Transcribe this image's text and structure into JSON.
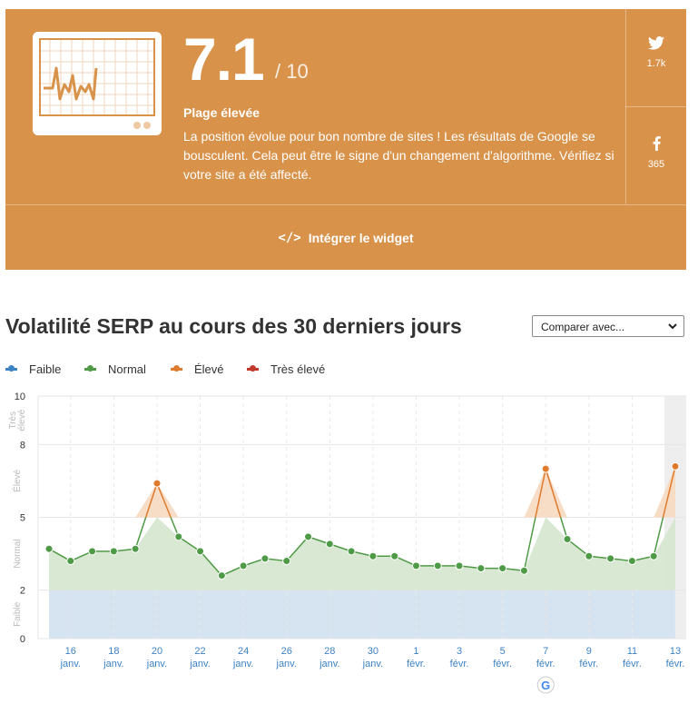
{
  "card": {
    "score": "7.1",
    "score_max": "/ 10",
    "range_label": "Plage élevée",
    "description": "La position évolue pour bon nombre de sites ! Les résultats de Google se bousculent. Cela peut être le signe d'un changement d'algorithme. Vérifiez si votre site a été affecté.",
    "twitter_count": "1.7k",
    "facebook_count": "365",
    "widget_label": "Intégrer le widget",
    "color": "#d8924a"
  },
  "chart_section": {
    "title": "Volatilité SERP au cours des 30 derniers jours",
    "compare_label": "Comparer avec..."
  },
  "chart_data": {
    "type": "area",
    "title": "Volatilité SERP au cours des 30 derniers jours",
    "legend": [
      {
        "name": "Faible",
        "color": "#3d82c4"
      },
      {
        "name": "Normal",
        "color": "#4f9a46"
      },
      {
        "name": "Élevé",
        "color": "#e07b2e"
      },
      {
        "name": "Très élevé",
        "color": "#c0392b"
      }
    ],
    "legend_position": "top-left",
    "ylim": [
      0,
      10
    ],
    "y_ticks": [
      0,
      2,
      5,
      8,
      10
    ],
    "bands": [
      {
        "label": "Faible",
        "from": 0,
        "to": 2
      },
      {
        "label": "Normal",
        "from": 2,
        "to": 5
      },
      {
        "label": "Élevé",
        "from": 5,
        "to": 8
      },
      {
        "label": "Très élevé",
        "from": 8,
        "to": 10
      }
    ],
    "x": [
      "15 janv.",
      "16 janv.",
      "17 janv.",
      "18 janv.",
      "19 janv.",
      "20 janv.",
      "21 janv.",
      "22 janv.",
      "23 janv.",
      "24 janv.",
      "25 janv.",
      "26 janv.",
      "27 janv.",
      "28 janv.",
      "29 janv.",
      "30 janv.",
      "31 janv.",
      "1 févr.",
      "2 févr.",
      "3 févr.",
      "4 févr.",
      "5 févr.",
      "6 févr.",
      "7 févr.",
      "8 févr.",
      "9 févr.",
      "10 févr.",
      "11 févr.",
      "12 févr.",
      "13 févr."
    ],
    "values": [
      3.7,
      3.2,
      3.6,
      3.6,
      3.7,
      6.4,
      4.2,
      3.6,
      2.6,
      3.0,
      3.3,
      3.2,
      4.2,
      3.9,
      3.6,
      3.4,
      3.4,
      3.0,
      3.0,
      3.0,
      2.9,
      2.9,
      2.8,
      7.0,
      4.1,
      3.4,
      3.3,
      3.2,
      3.4,
      7.1
    ],
    "x_tick_labels": [
      {
        "day": "16",
        "month": "janv."
      },
      {
        "day": "18",
        "month": "janv."
      },
      {
        "day": "20",
        "month": "janv."
      },
      {
        "day": "22",
        "month": "janv."
      },
      {
        "day": "24",
        "month": "janv."
      },
      {
        "day": "26",
        "month": "janv."
      },
      {
        "day": "28",
        "month": "janv."
      },
      {
        "day": "30",
        "month": "janv."
      },
      {
        "day": "1",
        "month": "févr."
      },
      {
        "day": "3",
        "month": "févr."
      },
      {
        "day": "5",
        "month": "févr."
      },
      {
        "day": "7",
        "month": "févr."
      },
      {
        "day": "9",
        "month": "févr."
      },
      {
        "day": "11",
        "month": "févr."
      },
      {
        "day": "13",
        "month": "févr."
      }
    ],
    "annotations": [
      {
        "x": "7 févr.",
        "icon": "google-update-icon"
      }
    ],
    "highlighted_x": "13 févr.",
    "colors": {
      "normal": "#4f9a46",
      "high": "#e07b2e",
      "grid": "#e6e6e6",
      "axis_label": "#3d82c4"
    }
  }
}
